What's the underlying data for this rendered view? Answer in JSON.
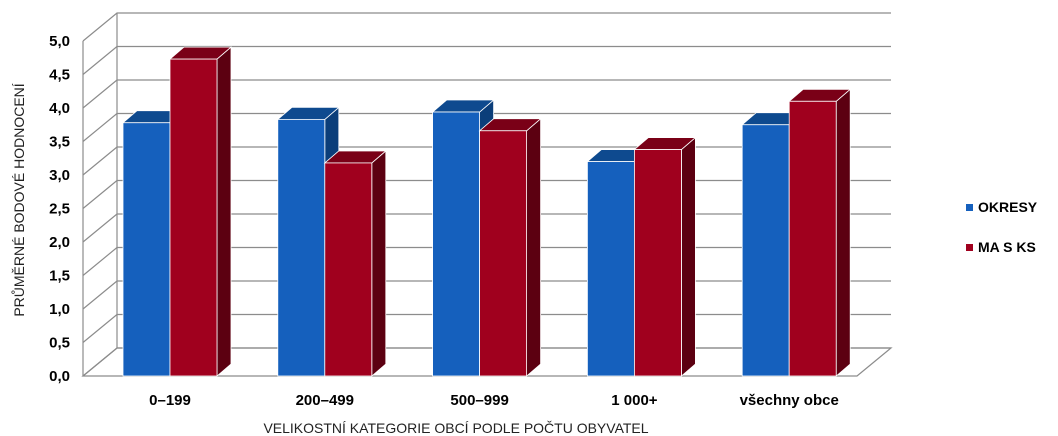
{
  "chart_data": {
    "type": "bar",
    "style": "3d-clustered-column",
    "categories": [
      "0–199",
      "200–499",
      "500–999",
      "1 000+",
      "všechny obce"
    ],
    "series": [
      {
        "name": "OKRESY",
        "values": [
          3.78,
          3.83,
          3.94,
          3.2,
          3.75
        ],
        "color": "#1560BD",
        "top_color": "#0E4A8F",
        "side_color": "#0B3E7A"
      },
      {
        "name": "MA S KS",
        "values": [
          4.73,
          3.18,
          3.66,
          3.38,
          4.1
        ],
        "color": "#A0001E",
        "top_color": "#7A0017",
        "side_color": "#5C0011"
      }
    ],
    "xlabel": "VELIKOSTNÍ KATEGORIE OBCÍ PODLE POČTU OBYVATEL",
    "ylabel": "PRŮMĚRNÉ BODOVÉ HODNOCENÍ",
    "ylim": [
      0,
      5
    ],
    "yticks": [
      "0,0",
      "0,5",
      "1,0",
      "1,5",
      "2,0",
      "2,5",
      "3,0",
      "3,5",
      "4,0",
      "4,5",
      "5,0"
    ],
    "grid": true,
    "legend_position": "right"
  }
}
